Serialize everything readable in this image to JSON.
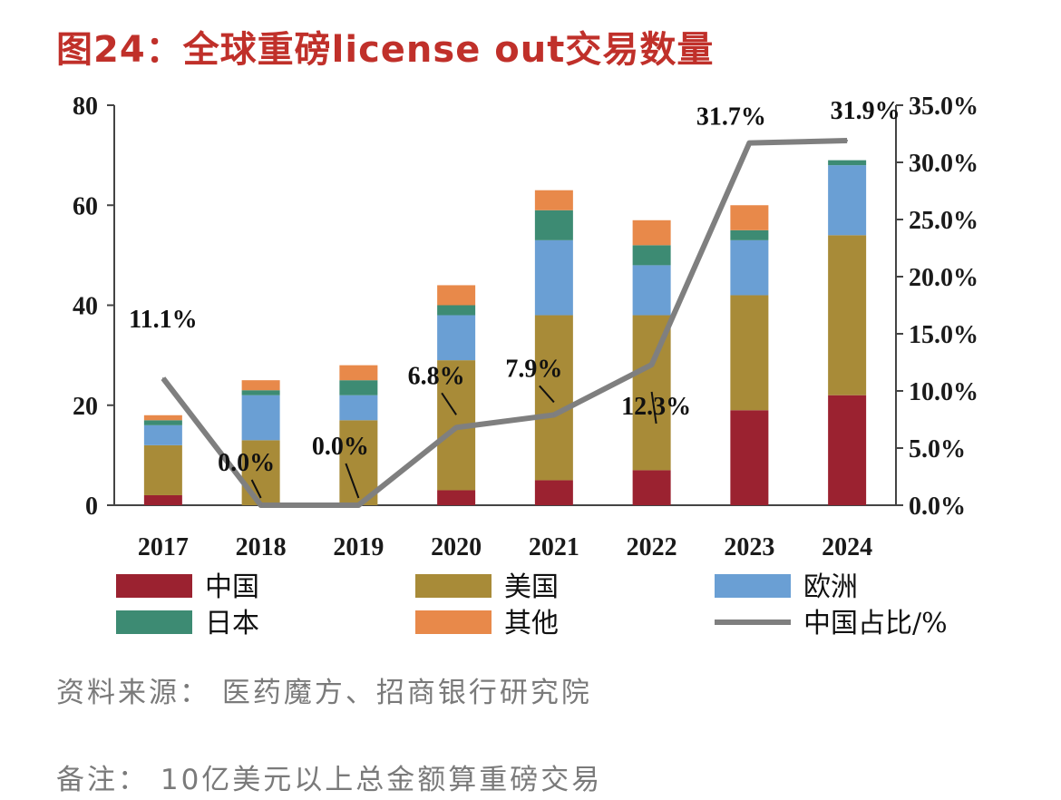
{
  "header": {
    "title": "图24：全球重磅license out交易数量"
  },
  "chart_data": {
    "type": "bar",
    "stacked": true,
    "categories": [
      "2017",
      "2018",
      "2019",
      "2020",
      "2021",
      "2022",
      "2023",
      "2024"
    ],
    "series": [
      {
        "name": "中国",
        "color": "#9b2230",
        "values": [
          2,
          0,
          0,
          3,
          5,
          7,
          19,
          22
        ]
      },
      {
        "name": "美国",
        "color": "#a88b38",
        "values": [
          10,
          13,
          17,
          26,
          33,
          31,
          23,
          32
        ]
      },
      {
        "name": "欧洲",
        "color": "#6a9fd4",
        "values": [
          4,
          9,
          5,
          9,
          15,
          10,
          11,
          14
        ]
      },
      {
        "name": "日本",
        "color": "#3d8b73",
        "values": [
          1,
          1,
          3,
          2,
          6,
          4,
          2,
          1
        ]
      },
      {
        "name": "其他",
        "color": "#e8894a",
        "values": [
          1,
          2,
          3,
          4,
          4,
          5,
          5,
          0
        ]
      }
    ],
    "line": {
      "name": "中国占比/%",
      "color": "#7f7f7f",
      "values": [
        11.1,
        0.0,
        0.0,
        6.8,
        7.9,
        12.3,
        31.7,
        31.9
      ],
      "labels": [
        "11.1%",
        "0.0%",
        "0.0%",
        "6.8%",
        "7.9%",
        "12.3%",
        "31.7%",
        "31.9%"
      ]
    },
    "y_left": {
      "min": 0,
      "max": 80,
      "ticks": [
        "0",
        "20",
        "40",
        "60",
        "80"
      ]
    },
    "y_right": {
      "min": 0,
      "max": 35,
      "ticks": [
        "0.0%",
        "5.0%",
        "10.0%",
        "15.0%",
        "20.0%",
        "25.0%",
        "30.0%",
        "35.0%"
      ]
    },
    "legend": [
      "中国",
      "美国",
      "欧洲",
      "日本",
      "其他",
      "中国占比/%"
    ]
  },
  "footer": {
    "source": "资料来源： 医药魔方、招商银行研究院",
    "note": "备注： 10亿美元以上总金额算重磅交易"
  }
}
